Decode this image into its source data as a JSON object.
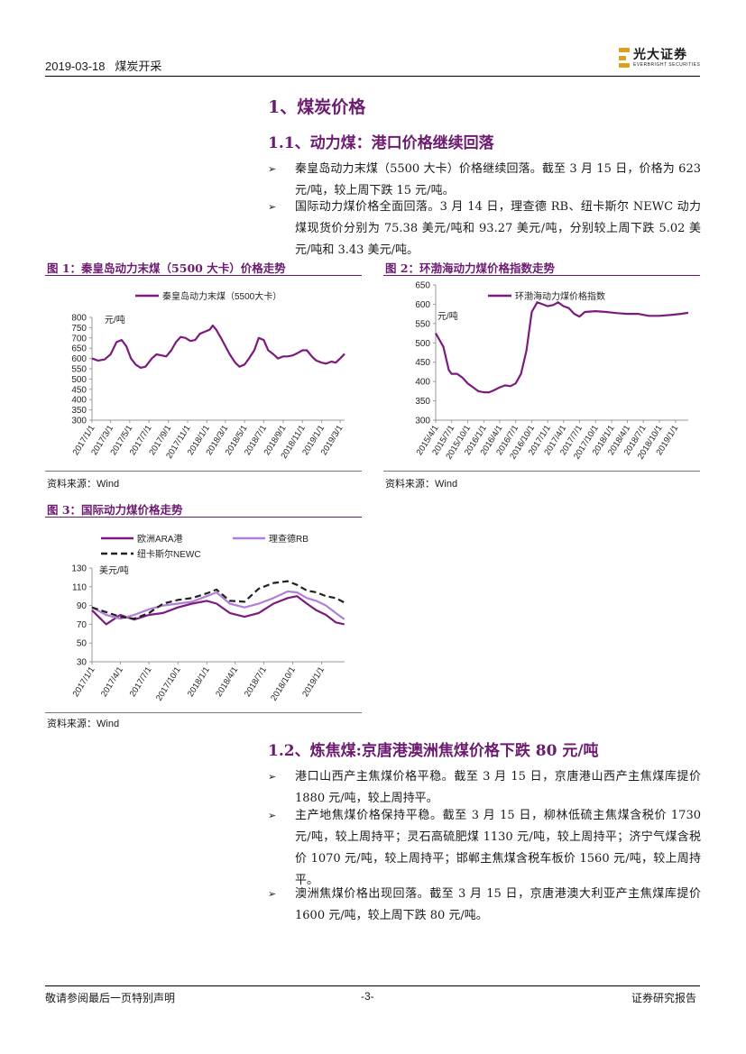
{
  "header": {
    "date": "2019-03-18",
    "sector": "煤炭开采",
    "logo_cn": "光大证券",
    "logo_en": "EVERBRIGHT SECURITIES"
  },
  "section1": {
    "title": "1、煤炭价格"
  },
  "section11": {
    "title": "1.1、动力煤：港口价格继续回落",
    "bullets": [
      "秦皇岛动力末煤（5500 大卡）价格继续回落。截至 3 月 15 日，价格为 623 元/吨，较上周下跌 15 元/吨。",
      "国际动力煤价格全面回落。3 月 14 日，理查德 RB、纽卡斯尔 NEWC 动力煤现货价分别为 75.38 美元/吨和 93.27 美元/吨，分别较上周下跌 5.02 美元/吨和 3.43 美元/吨。"
    ]
  },
  "fig1": {
    "title": "图 1：秦皇岛动力末煤（5500 大卡）价格走势",
    "source": "资料来源：Wind"
  },
  "fig2": {
    "title": "图 2：环渤海动力煤价格指数走势",
    "source": "资料来源：Wind"
  },
  "fig3": {
    "title": "图 3：国际动力煤价格走势",
    "source": "资料来源：Wind"
  },
  "section12": {
    "title": "1.2、炼焦煤:京唐港澳洲焦煤价格下跌 80 元/吨",
    "bullets": [
      "港口山西产主焦煤价格平稳。截至 3 月 15 日，京唐港山西产主焦煤库提价 1880 元/吨，较上周持平。",
      "主产地焦煤价格保持平稳。截至 3 月 15 日，柳林低硫主焦煤含税价 1730 元/吨，较上周持平；灵石高硫肥煤 1130 元/吨，较上周持平；济宁气煤含税价 1070 元/吨，较上周持平；邯郸主焦煤含税车板价 1560 元/吨，较上周持平。",
      "澳洲焦煤价格出现回落。截至 3 月 15 日，京唐港澳大利亚产主焦煤库提价 1600 元/吨，较上周下跌 80 元/吨。"
    ]
  },
  "footer": {
    "left": "敬请参阅最后一页特别声明",
    "page": "-3-",
    "right": "证券研究报告"
  },
  "colors": {
    "purple": "#7b1b7e",
    "lavender": "#b07fd8",
    "black": "#222222",
    "gold": "#d9a21e"
  },
  "chart_data": [
    {
      "type": "line",
      "id": "fig1",
      "unit": "元/吨",
      "ylim": [
        300,
        800
      ],
      "yticks": [
        300,
        350,
        400,
        450,
        500,
        550,
        600,
        650,
        700,
        750,
        800
      ],
      "xlim": [
        "2017-01-01",
        "2019-03-15"
      ],
      "xticks": [
        "2017/1/1",
        "2017/3/1",
        "2017/5/1",
        "2017/7/1",
        "2017/9/1",
        "2017/11/1",
        "2018/1/1",
        "2018/3/1",
        "2018/5/1",
        "2018/7/1",
        "2018/9/1",
        "2018/11/1",
        "2019/1/1",
        "2019/3/1"
      ],
      "series": [
        {
          "name": "秦皇岛动力末煤（5500大卡）",
          "color": "#7b1b7e",
          "x": [
            "2017-01-01",
            "2017-01-20",
            "2017-02-10",
            "2017-03-01",
            "2017-03-20",
            "2017-04-05",
            "2017-04-20",
            "2017-05-05",
            "2017-05-20",
            "2017-06-05",
            "2017-06-20",
            "2017-07-10",
            "2017-07-25",
            "2017-08-10",
            "2017-08-25",
            "2017-09-10",
            "2017-09-25",
            "2017-10-10",
            "2017-10-25",
            "2017-11-10",
            "2017-11-25",
            "2017-12-10",
            "2017-12-25",
            "2018-01-10",
            "2018-01-20",
            "2018-01-31",
            "2018-02-15",
            "2018-03-01",
            "2018-03-15",
            "2018-04-01",
            "2018-04-15",
            "2018-05-01",
            "2018-05-15",
            "2018-06-01",
            "2018-06-15",
            "2018-07-01",
            "2018-07-15",
            "2018-08-01",
            "2018-08-15",
            "2018-09-01",
            "2018-09-15",
            "2018-10-01",
            "2018-10-15",
            "2018-11-01",
            "2018-11-15",
            "2018-12-01",
            "2018-12-15",
            "2019-01-01",
            "2019-01-15",
            "2019-02-01",
            "2019-02-15",
            "2019-03-01",
            "2019-03-15"
          ],
          "y": [
            600,
            590,
            595,
            620,
            680,
            690,
            660,
            600,
            570,
            555,
            560,
            600,
            620,
            615,
            610,
            640,
            680,
            705,
            700,
            685,
            690,
            720,
            730,
            740,
            760,
            740,
            700,
            660,
            620,
            580,
            560,
            570,
            600,
            640,
            700,
            690,
            640,
            620,
            600,
            610,
            610,
            615,
            625,
            640,
            640,
            610,
            590,
            580,
            575,
            585,
            580,
            600,
            623
          ]
        }
      ]
    },
    {
      "type": "line",
      "id": "fig2",
      "unit": "元/吨",
      "ylim": [
        300,
        650
      ],
      "yticks": [
        300,
        350,
        400,
        450,
        500,
        550,
        600,
        650
      ],
      "xlim": [
        "2015-04-01",
        "2019-03-15"
      ],
      "xticks": [
        "2015/4/1",
        "2015/7/1",
        "2015/10/1",
        "2016/1/1",
        "2016/4/1",
        "2016/7/1",
        "2016/10/1",
        "2017/1/1",
        "2017/4/1",
        "2017/7/1",
        "2017/10/1",
        "2018/1/1",
        "2018/4/1",
        "2018/7/1",
        "2018/10/1",
        "2019/1/1"
      ],
      "series": [
        {
          "name": "环渤海动力煤价格指数",
          "color": "#7b1b7e",
          "x": [
            "2015-04-01",
            "2015-05-15",
            "2015-06-15",
            "2015-07-01",
            "2015-08-01",
            "2015-09-01",
            "2015-10-01",
            "2015-11-01",
            "2015-12-01",
            "2016-01-01",
            "2016-02-01",
            "2016-03-01",
            "2016-04-01",
            "2016-05-01",
            "2016-06-01",
            "2016-07-01",
            "2016-08-01",
            "2016-09-01",
            "2016-10-01",
            "2016-11-01",
            "2016-12-01",
            "2017-01-01",
            "2017-02-01",
            "2017-03-01",
            "2017-04-01",
            "2017-05-01",
            "2017-06-01",
            "2017-07-01",
            "2017-08-01",
            "2017-10-01",
            "2017-12-01",
            "2018-02-01",
            "2018-04-01",
            "2018-06-01",
            "2018-08-01",
            "2018-10-01",
            "2018-12-01",
            "2019-02-01",
            "2019-03-15"
          ],
          "y": [
            525,
            490,
            430,
            420,
            420,
            410,
            395,
            385,
            375,
            372,
            372,
            378,
            385,
            390,
            388,
            395,
            420,
            480,
            580,
            605,
            600,
            595,
            598,
            605,
            595,
            590,
            575,
            568,
            580,
            582,
            580,
            577,
            575,
            575,
            570,
            570,
            572,
            575,
            578
          ]
        }
      ]
    },
    {
      "type": "line",
      "id": "fig3",
      "unit": "美元/吨",
      "ylim": [
        30,
        130
      ],
      "yticks": [
        30,
        50,
        70,
        90,
        110,
        130
      ],
      "xlim": [
        "2017-01-01",
        "2019-03-15"
      ],
      "xticks": [
        "2017/1/1",
        "2017/4/1",
        "2017/7/1",
        "2017/10/1",
        "2018/1/1",
        "2018/4/1",
        "2018/7/1",
        "2018/10/1",
        "2019/1/1"
      ],
      "series": [
        {
          "name": "欧洲ARA港",
          "color": "#7b1b7e",
          "dash": false,
          "x": [
            "2017-01-01",
            "2017-02-15",
            "2017-04-01",
            "2017-05-15",
            "2017-07-01",
            "2017-08-15",
            "2017-10-01",
            "2017-11-15",
            "2018-01-01",
            "2018-02-01",
            "2018-03-15",
            "2018-05-01",
            "2018-06-15",
            "2018-08-01",
            "2018-09-15",
            "2018-10-15",
            "2018-11-15",
            "2018-12-15",
            "2019-01-15",
            "2019-02-15",
            "2019-03-14"
          ],
          "y": [
            85,
            70,
            80,
            75,
            80,
            82,
            88,
            92,
            95,
            92,
            82,
            78,
            82,
            92,
            98,
            100,
            92,
            85,
            80,
            72,
            70
          ]
        },
        {
          "name": "理查德RB",
          "color": "#b07fd8",
          "dash": false,
          "x": [
            "2017-01-01",
            "2017-02-15",
            "2017-04-01",
            "2017-05-15",
            "2017-07-01",
            "2017-08-15",
            "2017-10-01",
            "2017-11-15",
            "2018-01-01",
            "2018-02-01",
            "2018-03-15",
            "2018-05-01",
            "2018-06-15",
            "2018-08-01",
            "2018-09-15",
            "2018-10-15",
            "2018-11-15",
            "2018-12-15",
            "2019-01-15",
            "2019-02-15",
            "2019-03-14"
          ],
          "y": [
            88,
            80,
            76,
            80,
            86,
            90,
            92,
            94,
            100,
            104,
            92,
            88,
            92,
            98,
            105,
            104,
            98,
            95,
            90,
            82,
            75.38
          ]
        },
        {
          "name": "纽卡斯尔NEWC",
          "color": "#222222",
          "dash": true,
          "x": [
            "2017-01-01",
            "2017-02-15",
            "2017-04-01",
            "2017-05-15",
            "2017-07-01",
            "2017-08-15",
            "2017-10-01",
            "2017-11-15",
            "2018-01-01",
            "2018-02-01",
            "2018-03-15",
            "2018-05-01",
            "2018-06-15",
            "2018-08-01",
            "2018-09-15",
            "2018-10-15",
            "2018-11-15",
            "2018-12-15",
            "2019-01-15",
            "2019-02-15",
            "2019-03-14"
          ],
          "y": [
            88,
            83,
            78,
            76,
            82,
            92,
            96,
            98,
            103,
            107,
            95,
            94,
            108,
            114,
            116,
            112,
            106,
            104,
            100,
            98,
            93.27
          ]
        }
      ]
    }
  ]
}
